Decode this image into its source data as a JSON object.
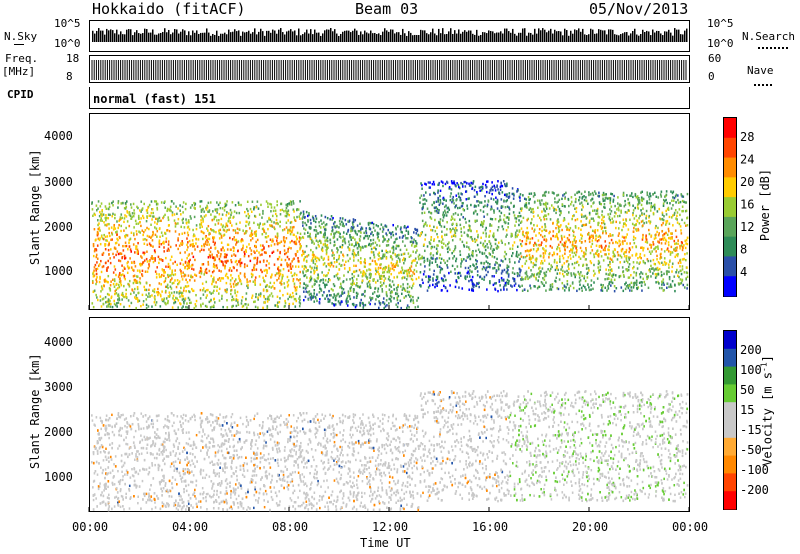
{
  "header": {
    "title": "Hokkaido (fitACF)",
    "beam": "Beam 03",
    "date": "05/Nov/2013"
  },
  "top_panels": {
    "nsky_label": "N.Sky",
    "nsky_ticks": [
      "10^5",
      "10^0"
    ],
    "nsearch_label": "N.Search",
    "nsearch_ticks": [
      "10^5",
      "10^0"
    ],
    "freq_label_1": "Freq.",
    "freq_label_2": "[MHz]",
    "freq_ticks": [
      "18",
      "8"
    ],
    "nave_label": "Nave",
    "nave_ticks": [
      "60",
      "0"
    ],
    "cpid_label": "CPID",
    "cpid_text": "normal (fast) 151"
  },
  "colors": {
    "power_scale": [
      "#0000ff",
      "#2a4fa8",
      "#2e8b57",
      "#5aa55a",
      "#99cc33",
      "#ffcc00",
      "#ff8c00",
      "#ff4500",
      "#ff0000"
    ],
    "velocity_scale": [
      "#ff0000",
      "#ff4400",
      "#ff8800",
      "#ffaa33",
      "#c8c8c8",
      "#c8c8c8",
      "#66cc33",
      "#339933",
      "#2255aa",
      "#0000cc"
    ]
  },
  "chart_data": [
    {
      "type": "heatmap",
      "title": "",
      "ylabel": "Slant Range [km]",
      "xlabel": "",
      "xlim": [
        "00:00",
        "24:00"
      ],
      "ylim": [
        180,
        4500
      ],
      "y_ticks": [
        "1000",
        "2000",
        "3000",
        "4000"
      ],
      "colorbar_label": "Power [dB]",
      "colorbar_ticks": [
        "4",
        "8",
        "12",
        "16",
        "20",
        "24",
        "28"
      ],
      "clim": [
        0,
        30
      ]
    },
    {
      "type": "heatmap",
      "title": "",
      "ylabel": "Slant Range [km]",
      "xlabel": "Time UT",
      "x_ticks": [
        "00:00",
        "04:00",
        "08:00",
        "12:00",
        "16:00",
        "20:00",
        "00:00"
      ],
      "xlim": [
        "00:00",
        "24:00"
      ],
      "ylim": [
        180,
        4500
      ],
      "y_ticks": [
        "1000",
        "2000",
        "3000",
        "4000"
      ],
      "colorbar_label": "Velocity [m s",
      "colorbar_label_sup": "-1",
      "colorbar_label_end": "]",
      "colorbar_ticks": [
        "200",
        "100",
        "50",
        "15",
        "-15",
        "-50",
        "-100",
        "-200"
      ],
      "clim": [
        -250,
        250
      ]
    }
  ]
}
